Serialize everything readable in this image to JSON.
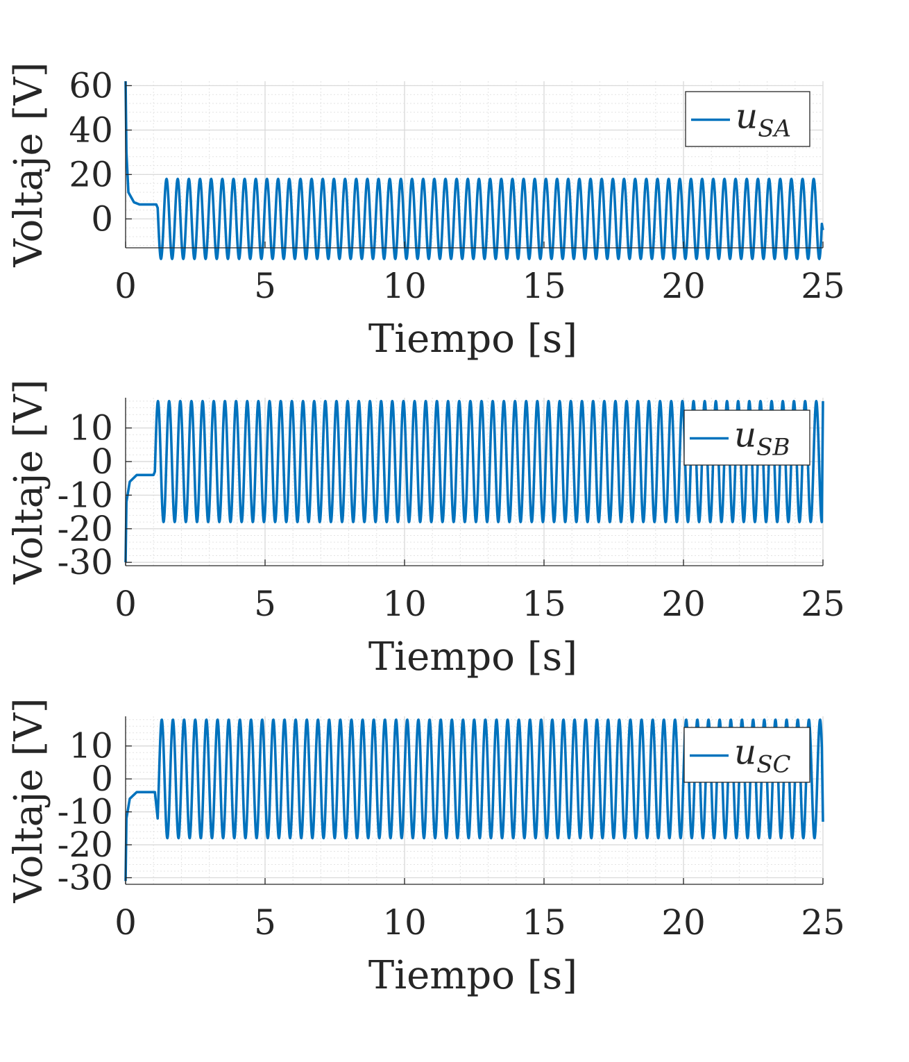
{
  "chart_data": [
    {
      "type": "line",
      "xlabel": "Tiempo [s]",
      "ylabel": "Voltaje [V]",
      "xlim": [
        0,
        25
      ],
      "ylim": [
        -13,
        62
      ],
      "xticks": [
        "0",
        "5",
        "10",
        "15",
        "20",
        "25"
      ],
      "yticks": [
        "0",
        "20",
        "40",
        "60"
      ],
      "grid": "on",
      "legend_position": "top-right",
      "series": [
        {
          "name": "u_SA",
          "legend_main": "u",
          "legend_sub": "SA",
          "color": "#0072bd",
          "transient": [
            [
              0,
              62
            ],
            [
              0.03,
              30
            ],
            [
              0.1,
              12
            ],
            [
              0.3,
              7.5
            ],
            [
              0.5,
              6.5
            ],
            [
              1.1,
              6.5
            ],
            [
              1.15,
              5
            ]
          ],
          "oscillation": {
            "start": 1.15,
            "end": 25,
            "amplitude": 18,
            "offset": 0,
            "period": 0.4,
            "initial_phase": "falling",
            "end_value": -5
          }
        }
      ]
    },
    {
      "type": "line",
      "xlabel": "Tiempo [s]",
      "ylabel": "Voltaje [V]",
      "xlim": [
        0,
        25
      ],
      "ylim": [
        -31,
        19
      ],
      "xticks": [
        "0",
        "5",
        "10",
        "15",
        "20",
        "25"
      ],
      "yticks": [
        "-30",
        "-20",
        "-10",
        "0",
        "10"
      ],
      "grid": "on",
      "legend_position": "top-right",
      "series": [
        {
          "name": "u_SB",
          "legend_main": "u",
          "legend_sub": "SB",
          "color": "#0072bd",
          "transient": [
            [
              0,
              -30
            ],
            [
              0.03,
              -12
            ],
            [
              0.15,
              -6
            ],
            [
              0.4,
              -4
            ],
            [
              1.0,
              -4
            ],
            [
              1.05,
              -3
            ]
          ],
          "oscillation": {
            "start": 1.05,
            "end": 25,
            "amplitude": 18,
            "offset": 0,
            "period": 0.4,
            "initial_phase": "rising",
            "end_value": 18
          }
        }
      ]
    },
    {
      "type": "line",
      "xlabel": "Tiempo [s]",
      "ylabel": "Voltaje [V]",
      "xlim": [
        0,
        25
      ],
      "ylim": [
        -32,
        19
      ],
      "xticks": [
        "0",
        "5",
        "10",
        "15",
        "20",
        "25"
      ],
      "yticks": [
        "-30",
        "-20",
        "-10",
        "0",
        "10"
      ],
      "grid": "on",
      "legend_position": "top-right",
      "series": [
        {
          "name": "u_SC",
          "legend_main": "u",
          "legend_sub": "SC",
          "color": "#0072bd",
          "transient": [
            [
              0,
              -31
            ],
            [
              0.03,
              -12
            ],
            [
              0.15,
              -6
            ],
            [
              0.4,
              -4
            ],
            [
              1.05,
              -4
            ],
            [
              1.15,
              -12
            ]
          ],
          "oscillation": {
            "start": 1.15,
            "end": 25,
            "amplitude": 18,
            "offset": 0,
            "period": 0.4,
            "initial_phase": "rising",
            "end_value": -13
          }
        }
      ]
    }
  ]
}
